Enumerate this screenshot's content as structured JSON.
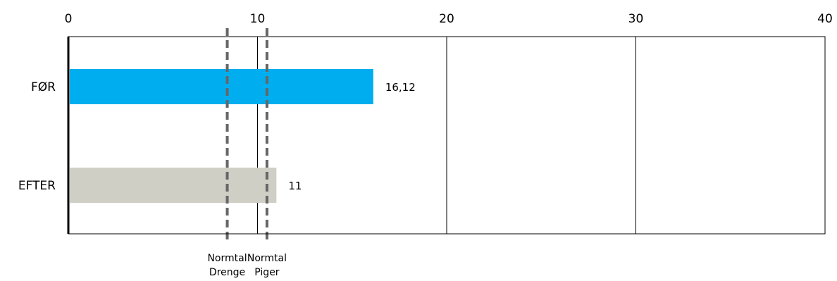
{
  "chart_data": {
    "type": "bar",
    "orientation": "horizontal",
    "categories": [
      "FØR",
      "EFTER"
    ],
    "values": [
      16.12,
      11
    ],
    "value_labels": [
      "16,12",
      "11"
    ],
    "colors": [
      "#00AEEF",
      "#D0CFC6"
    ],
    "xlim": [
      0,
      40
    ],
    "x_ticks": [
      0,
      10,
      20,
      30,
      40
    ],
    "x_tick_labels": [
      "0",
      "10",
      "20",
      "30",
      "40"
    ],
    "x_axis_position": "top",
    "grid": true,
    "reference_lines": [
      {
        "value": 8.4,
        "label_lines": [
          "Normtal",
          "Drenge"
        ],
        "style": "dashed"
      },
      {
        "value": 10.5,
        "label_lines": [
          "Normtal",
          "Piger"
        ],
        "style": "dashed"
      }
    ]
  }
}
